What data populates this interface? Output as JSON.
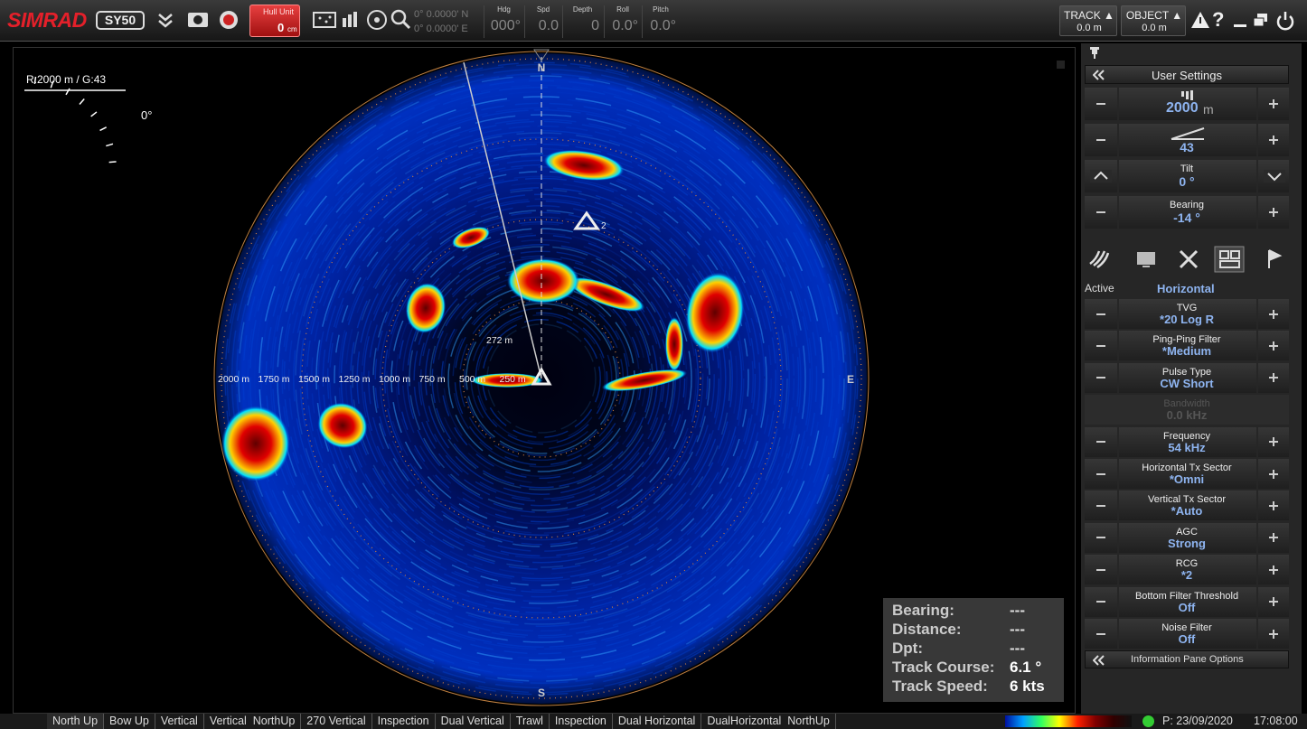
{
  "header": {
    "brand": "SIMRAD",
    "model": "SY50",
    "hull_unit": {
      "label": "Hull Unit",
      "value": "0",
      "unit": "cm"
    },
    "position": {
      "lat": "0° 0.0000' N",
      "lon": "0° 0.0000' E"
    },
    "readouts": [
      {
        "label": "Hdg",
        "value": "000°"
      },
      {
        "label": "Spd",
        "value": "0.0"
      },
      {
        "label": "Depth",
        "value": "0"
      },
      {
        "label": "Roll",
        "value": "0.0°"
      },
      {
        "label": "Pitch",
        "value": "0.0°"
      }
    ],
    "track": {
      "label": "TRACK ▲",
      "value": "0.0 m"
    },
    "object": {
      "label": "OBJECT ▲",
      "value": "0.0 m"
    },
    "help": "?"
  },
  "sonar": {
    "range_gain": "R:2000 m / G:43",
    "tilt_indicator": "0°",
    "range_labels": [
      "2000 m",
      "1750 m",
      "1500 m",
      "1250 m",
      "1000 m",
      "750 m",
      "500 m",
      "250 m"
    ],
    "target_range": "272 m",
    "compass": {
      "north": "N",
      "east": "E",
      "south": "S"
    },
    "marker_id": "2"
  },
  "info_pane": {
    "rows": [
      {
        "label": "Bearing:",
        "value": "---"
      },
      {
        "label": "Distance:",
        "value": "---"
      },
      {
        "label": "Dpt:",
        "value": "---"
      },
      {
        "label": "Track Course:",
        "value": "6.1 °"
      },
      {
        "label": "Track Speed:",
        "value": "6 kts"
      }
    ]
  },
  "side_panel": {
    "title": "User Settings",
    "range": {
      "value": "2000",
      "unit": "m"
    },
    "gain": "43",
    "tilt": {
      "label": "Tilt",
      "value": "0 °"
    },
    "bearing": {
      "label": "Bearing",
      "value": "-14 °"
    },
    "mode": {
      "label": "Active",
      "value": "Horizontal"
    },
    "settings": [
      {
        "label": "TVG",
        "value": "*20 Log R"
      },
      {
        "label": "Ping-Ping Filter",
        "value": "*Medium"
      },
      {
        "label": "Pulse Type",
        "value": "CW Short"
      },
      {
        "label": "Bandwidth",
        "value": "0.0 kHz",
        "disabled": true
      },
      {
        "label": "Frequency",
        "value": "54 kHz"
      },
      {
        "label": "Horizontal Tx Sector",
        "value": "*Omni"
      },
      {
        "label": "Vertical Tx Sector",
        "value": "*Auto"
      },
      {
        "label": "AGC",
        "value": "Strong"
      },
      {
        "label": "RCG",
        "value": "*2"
      },
      {
        "label": "Bottom Filter Threshold",
        "value": "Off"
      },
      {
        "label": "Noise Filter",
        "value": "Off"
      }
    ],
    "footer": "Information Pane Options"
  },
  "bottom_bar": {
    "tabs": [
      "North Up",
      "Bow Up",
      "Vertical",
      "Vertical  NorthUp",
      "270 Vertical",
      "Inspection",
      "Dual Vertical",
      "Trawl",
      "Inspection",
      "Dual Horizontal",
      "DualHorizontal  NorthUp"
    ],
    "status": {
      "date": "P: 23/09/2020",
      "time": "17:08:00"
    }
  }
}
